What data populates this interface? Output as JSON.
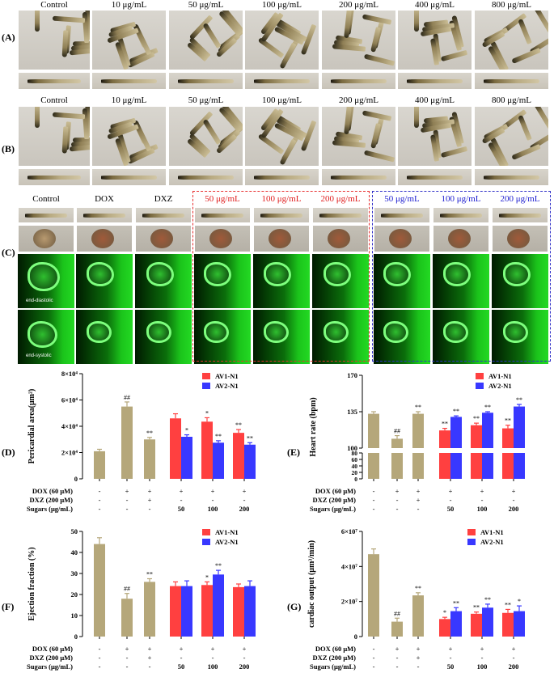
{
  "panelA": {
    "letter": "(A)",
    "headers": [
      "Control",
      "10 μg/mL",
      "50 μg/mL",
      "100 μg/mL",
      "200 μg/mL",
      "400 μg/mL",
      "800 μg/mL"
    ]
  },
  "panelB": {
    "letter": "(B)",
    "headers": [
      "Control",
      "10 μg/mL",
      "50 μg/mL",
      "100 μg/mL",
      "200 μg/mL",
      "400 μg/mL",
      "800 μg/mL"
    ]
  },
  "panelC": {
    "letter": "(C)",
    "headers": [
      "Control",
      "DOX",
      "DXZ",
      "50 μg/mL",
      "100 μg/mL",
      "200 μg/mL",
      "50 μg/mL",
      "100 μg/mL",
      "200 μg/mL"
    ],
    "header_colors": [
      "#000",
      "#000",
      "#000",
      "#e02020",
      "#e02020",
      "#e02020",
      "#2020d0",
      "#2020d0",
      "#2020d0"
    ],
    "row_labels": [
      "end-diastolic",
      "end-systolic"
    ],
    "box_colors": {
      "red": "#e83030",
      "blue": "#3030c8"
    }
  },
  "colors": {
    "ctrl": "#b5a77a",
    "av1": "#ff4040",
    "av2": "#3838ff"
  },
  "treatment_table": {
    "row_labels": [
      "DOX (60 μM)",
      "DXZ (200 μM)",
      "Sugars (μg/mL)"
    ],
    "dox": [
      "-",
      "+",
      "+",
      "+",
      "+",
      "+"
    ],
    "dxz": [
      "-",
      "-",
      "+",
      "-",
      "-",
      "-"
    ],
    "sugars": [
      "-",
      "-",
      "-",
      "50",
      "100",
      "200"
    ]
  },
  "chart_data": [
    {
      "panel": "(D)",
      "type": "bar",
      "ylabel": "Pericardial area(μm²)",
      "ylim": [
        0,
        80000
      ],
      "yticks": [
        "0",
        "2×10⁴",
        "4×10⁴",
        "6×10⁴",
        "8×10⁴"
      ],
      "single": [
        {
          "group": 0,
          "value": 21000,
          "err": 1500,
          "mark": ""
        },
        {
          "group": 1,
          "value": 55000,
          "err": 3500,
          "mark": "##"
        },
        {
          "group": 2,
          "value": 30000,
          "err": 1500,
          "mark": "**"
        }
      ],
      "series": [
        {
          "name": "AV1-N1",
          "values": [
            46000,
            43500,
            35000
          ],
          "err": [
            3500,
            3000,
            2500
          ],
          "marks": [
            "",
            "*",
            "**"
          ]
        },
        {
          "name": "AV2-N1",
          "values": [
            32000,
            27500,
            26000
          ],
          "err": [
            1500,
            1500,
            1500
          ],
          "marks": [
            "*",
            "**",
            "**"
          ]
        }
      ]
    },
    {
      "panel": "(E)",
      "type": "bar",
      "ylabel": "Heart rate (bpm)",
      "broken": true,
      "yticks_upper": [
        "100",
        "135",
        "170"
      ],
      "yticks_lower": [
        "0",
        "20",
        "40",
        "60",
        "80"
      ],
      "single": [
        {
          "group": 0,
          "value": 133,
          "err": 2,
          "mark": ""
        },
        {
          "group": 1,
          "value": 109,
          "err": 3,
          "mark": "##"
        },
        {
          "group": 2,
          "value": 133,
          "err": 2,
          "mark": "**"
        }
      ],
      "series": [
        {
          "name": "AV1-N1",
          "values": [
            117,
            122,
            119
          ],
          "err": [
            2,
            2,
            3
          ],
          "marks": [
            "**",
            "**",
            "**"
          ]
        },
        {
          "name": "AV2-N1",
          "values": [
            130,
            134,
            140
          ],
          "err": [
            1,
            1,
            2
          ],
          "marks": [
            "**",
            "**",
            "**"
          ]
        }
      ]
    },
    {
      "panel": "(F)",
      "type": "bar",
      "ylabel": "Ejection fraction (%)",
      "ylim": [
        0,
        50
      ],
      "yticks": [
        "0",
        "10",
        "20",
        "30",
        "40",
        "50"
      ],
      "single": [
        {
          "group": 0,
          "value": 44,
          "err": 3,
          "mark": ""
        },
        {
          "group": 1,
          "value": 18,
          "err": 2.5,
          "mark": "##"
        },
        {
          "group": 2,
          "value": 26,
          "err": 1.5,
          "mark": "**"
        }
      ],
      "series": [
        {
          "name": "AV1-N1",
          "values": [
            24,
            24.5,
            23.5
          ],
          "err": [
            2,
            1.5,
            1.5
          ],
          "marks": [
            "",
            "*",
            ""
          ]
        },
        {
          "name": "AV2-N1",
          "values": [
            24,
            29.5,
            24
          ],
          "err": [
            2.5,
            2,
            2.5
          ],
          "marks": [
            "",
            "**",
            ""
          ]
        }
      ]
    },
    {
      "panel": "(G)",
      "type": "bar",
      "ylabel": "cardiac output (μm³/min)",
      "ylim": [
        0,
        60000000
      ],
      "yticks": [
        "0",
        "2×10⁷",
        "4×10⁷",
        "6×10⁷"
      ],
      "single": [
        {
          "group": 0,
          "value": 47000000,
          "err": 3000000,
          "mark": ""
        },
        {
          "group": 1,
          "value": 8500000,
          "err": 2000000,
          "mark": "##"
        },
        {
          "group": 2,
          "value": 23500000,
          "err": 1500000,
          "mark": "**"
        }
      ],
      "series": [
        {
          "name": "AV1-N1",
          "values": [
            10000000,
            13000000,
            13500000
          ],
          "err": [
            1000000,
            1000000,
            2000000
          ],
          "marks": [
            "*",
            "**",
            "**"
          ]
        },
        {
          "name": "AV2-N1",
          "values": [
            14500000,
            16500000,
            14500000
          ],
          "err": [
            2000000,
            2000000,
            3000000
          ],
          "marks": [
            "**",
            "**",
            "*"
          ]
        }
      ]
    }
  ]
}
